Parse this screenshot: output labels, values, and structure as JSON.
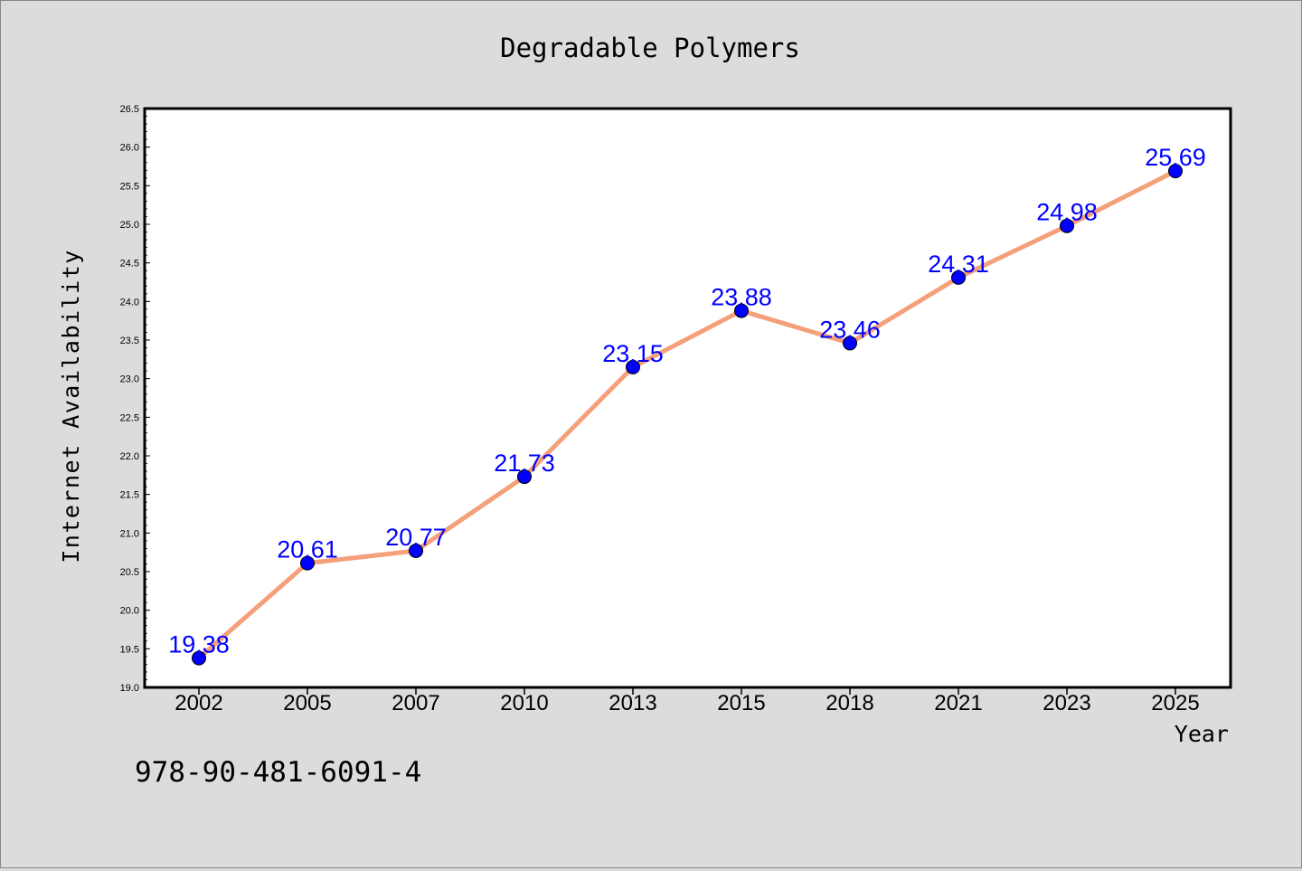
{
  "chart_data": {
    "type": "line",
    "title": "Degradable Polymers",
    "xlabel": "Year",
    "ylabel": "Internet Availability",
    "categories": [
      "2002",
      "2005",
      "2007",
      "2010",
      "2013",
      "2015",
      "2018",
      "2021",
      "2023",
      "2025"
    ],
    "series": [
      {
        "values": [
          19.38,
          20.61,
          20.77,
          21.73,
          23.15,
          23.88,
          23.46,
          24.31,
          24.98,
          25.69
        ],
        "data_labels": [
          "19.38",
          "20.61",
          "20.77",
          "21.73",
          "23.15",
          "23.88",
          "23.46",
          "24.31",
          "24.98",
          "25.69"
        ],
        "line_color": "#f4a07a",
        "marker_color": "#0000ff"
      }
    ],
    "ylim": [
      19.0,
      26.5
    ],
    "yticks": [
      19.0,
      19.5,
      20.0,
      20.5,
      21.0,
      21.5,
      22.0,
      22.5,
      23.0,
      23.5,
      24.0,
      24.5,
      25.0,
      25.5,
      26.0,
      26.5
    ],
    "ytick_labels": [
      "19.0",
      "19.5",
      "20.0",
      "20.5",
      "21.0",
      "21.5",
      "22.0",
      "22.5",
      "23.0",
      "23.5",
      "24.0",
      "24.5",
      "25.0",
      "25.5",
      "26.0",
      "26.5"
    ],
    "grid": false,
    "legend": "none",
    "annotation": "978-90-481-6091-4",
    "colors": {
      "background": "#dcdcdc",
      "plot_background": "#ffffff",
      "data_label": "#0000ff"
    }
  }
}
